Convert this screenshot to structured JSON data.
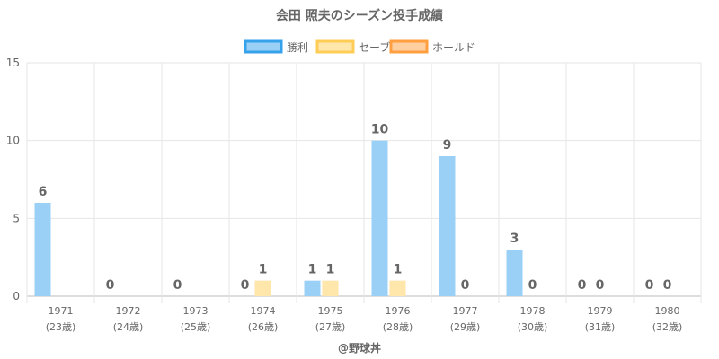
{
  "chart_data": {
    "type": "bar",
    "title": "会田 照夫のシーズン投手成績",
    "categories": [
      [
        "1971",
        "(23歳)"
      ],
      [
        "1972",
        "(24歳)"
      ],
      [
        "1973",
        "(25歳)"
      ],
      [
        "1974",
        "(26歳)"
      ],
      [
        "1975",
        "(27歳)"
      ],
      [
        "1976",
        "(28歳)"
      ],
      [
        "1977",
        "(29歳)"
      ],
      [
        "1978",
        "(30歳)"
      ],
      [
        "1979",
        "(31歳)"
      ],
      [
        "1980",
        "(32歳)"
      ]
    ],
    "series": [
      {
        "name": "勝利",
        "color": "#9ad0f5",
        "border": "#36a2eb",
        "values": [
          6,
          0,
          0,
          0,
          1,
          10,
          9,
          3,
          0,
          0
        ],
        "labels": [
          "6",
          "0",
          "0",
          "0",
          "1",
          "10",
          "9",
          "3",
          "0",
          "0"
        ]
      },
      {
        "name": "セーブ",
        "color": "#ffe6aa",
        "border": "#ffcd56",
        "values": [
          null,
          null,
          null,
          1,
          1,
          1,
          0,
          0,
          0,
          0
        ],
        "labels": [
          null,
          null,
          null,
          "1",
          "1",
          "1",
          "0",
          "0",
          "0",
          "0"
        ]
      },
      {
        "name": "ホールド",
        "color": "#ffcf9f",
        "border": "#ff9f40",
        "values": [
          null,
          null,
          null,
          null,
          null,
          null,
          null,
          null,
          null,
          null
        ],
        "labels": [
          null,
          null,
          null,
          null,
          null,
          null,
          null,
          null,
          null,
          null
        ]
      }
    ],
    "ylim": [
      0,
      15
    ],
    "yticks": [
      0,
      5,
      10,
      15
    ],
    "grid": true,
    "legend_position": "top"
  },
  "credit": "@野球丼"
}
